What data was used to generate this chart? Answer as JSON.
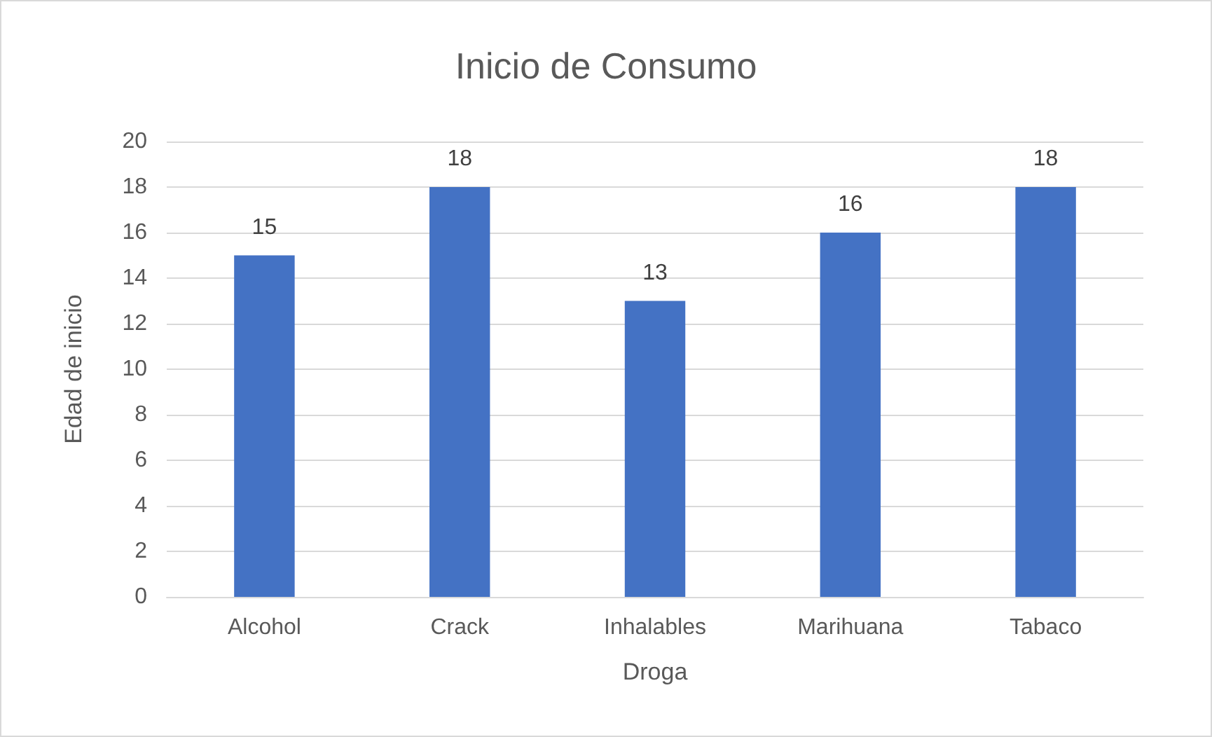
{
  "chart_data": {
    "type": "bar",
    "title": "Inicio de Consumo",
    "xlabel": "Droga",
    "ylabel": "Edad de inicio",
    "categories": [
      "Alcohol",
      "Crack",
      "Inhalables",
      "Marihuana",
      "Tabaco"
    ],
    "values": [
      15,
      18,
      13,
      16,
      18
    ],
    "color": "#4472c4",
    "ylim": [
      0,
      20
    ],
    "yticks": [
      0,
      2,
      4,
      6,
      8,
      10,
      12,
      14,
      16,
      18,
      20
    ],
    "grid": "y",
    "data_labels": true
  }
}
